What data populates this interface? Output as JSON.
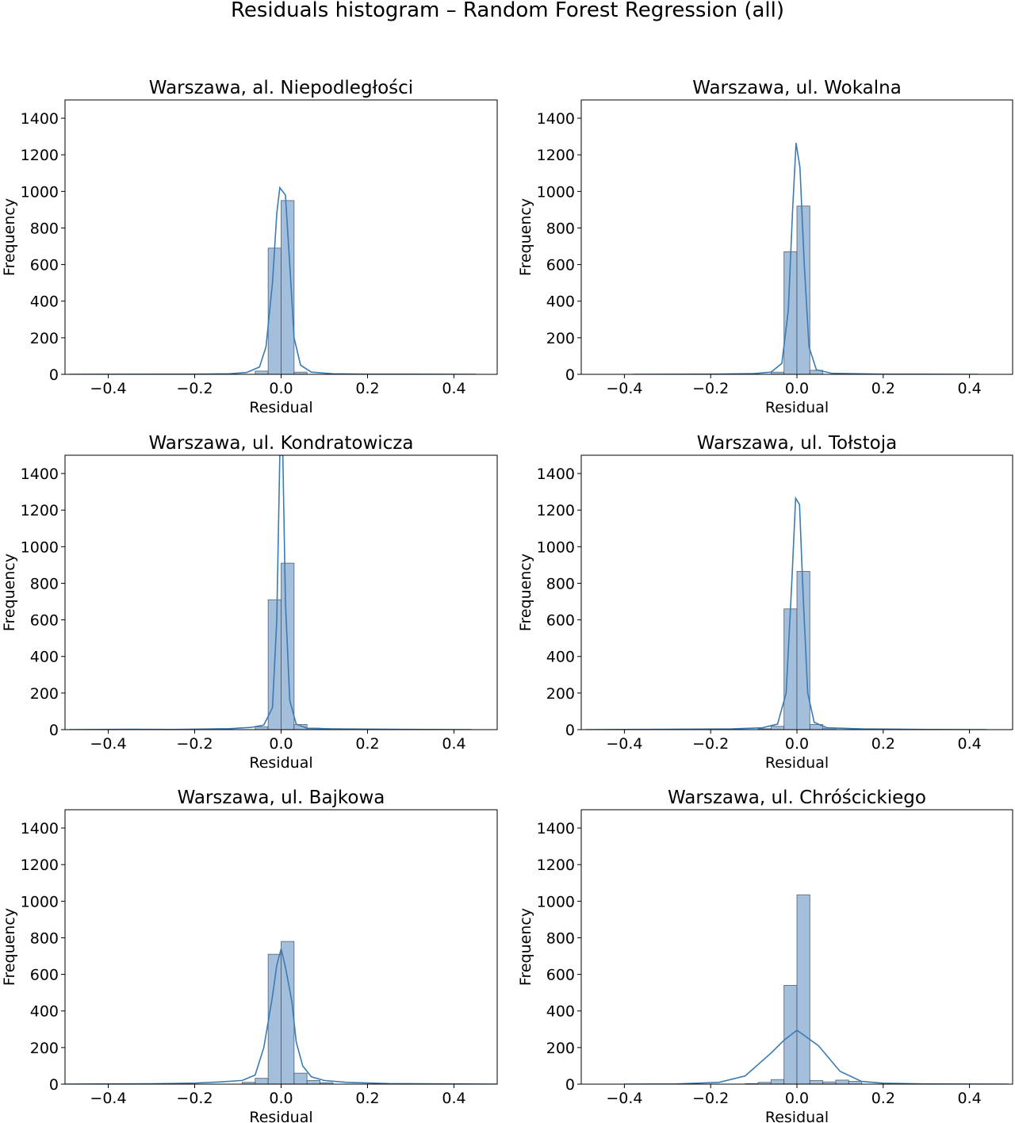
{
  "figure": {
    "title": "Residuals histogram – Random Forest Regression (all)"
  },
  "chart_data": [
    {
      "type": "histogram",
      "title": "Warszawa, al. Niepodległości",
      "xlabel": "Residual",
      "ylabel": "Frequency",
      "xlim": [
        -0.5,
        0.5
      ],
      "ylim": [
        0,
        1500
      ],
      "xticks": [
        -0.4,
        -0.2,
        0.0,
        0.2,
        0.4
      ],
      "xtick_labels": [
        "−0.4",
        "−0.2",
        "0.0",
        "0.2",
        "0.4"
      ],
      "yticks": [
        0,
        200,
        400,
        600,
        800,
        1000,
        1200,
        1400
      ],
      "bin_width": 0.03,
      "bins": [
        {
          "x0": -0.06,
          "x1": -0.03,
          "count": 18
        },
        {
          "x0": -0.03,
          "x1": 0.0,
          "count": 690
        },
        {
          "x0": 0.0,
          "x1": 0.03,
          "count": 950
        },
        {
          "x0": 0.03,
          "x1": 0.06,
          "count": 12
        }
      ],
      "kde": [
        {
          "x": -0.49,
          "y": 0
        },
        {
          "x": -0.2,
          "y": 1
        },
        {
          "x": -0.12,
          "y": 3
        },
        {
          "x": -0.08,
          "y": 10
        },
        {
          "x": -0.05,
          "y": 40
        },
        {
          "x": -0.035,
          "y": 150
        },
        {
          "x": -0.02,
          "y": 500
        },
        {
          "x": -0.01,
          "y": 880
        },
        {
          "x": -0.003,
          "y": 1020
        },
        {
          "x": 0.01,
          "y": 980
        },
        {
          "x": 0.02,
          "y": 600
        },
        {
          "x": 0.03,
          "y": 200
        },
        {
          "x": 0.045,
          "y": 50
        },
        {
          "x": 0.07,
          "y": 12
        },
        {
          "x": 0.12,
          "y": 3
        },
        {
          "x": 0.2,
          "y": 1
        },
        {
          "x": 0.45,
          "y": 0
        }
      ]
    },
    {
      "type": "histogram",
      "title": "Warszawa, ul. Wokalna",
      "xlabel": "Residual",
      "ylabel": "Frequency",
      "xlim": [
        -0.5,
        0.5
      ],
      "ylim": [
        0,
        1500
      ],
      "xticks": [
        -0.4,
        -0.2,
        0.0,
        0.2,
        0.4
      ],
      "xtick_labels": [
        "−0.4",
        "−0.2",
        "0.0",
        "0.2",
        "0.4"
      ],
      "yticks": [
        0,
        200,
        400,
        600,
        800,
        1000,
        1200,
        1400
      ],
      "bin_width": 0.03,
      "bins": [
        {
          "x0": -0.06,
          "x1": -0.03,
          "count": 12
        },
        {
          "x0": -0.03,
          "x1": 0.0,
          "count": 670
        },
        {
          "x0": 0.0,
          "x1": 0.03,
          "count": 920
        },
        {
          "x0": 0.03,
          "x1": 0.06,
          "count": 22
        }
      ],
      "kde": [
        {
          "x": -0.38,
          "y": 0
        },
        {
          "x": -0.2,
          "y": 1
        },
        {
          "x": -0.1,
          "y": 4
        },
        {
          "x": -0.06,
          "y": 12
        },
        {
          "x": -0.035,
          "y": 60
        },
        {
          "x": -0.02,
          "y": 350
        },
        {
          "x": -0.01,
          "y": 900
        },
        {
          "x": -0.002,
          "y": 1265
        },
        {
          "x": 0.007,
          "y": 1130
        },
        {
          "x": 0.017,
          "y": 600
        },
        {
          "x": 0.028,
          "y": 150
        },
        {
          "x": 0.045,
          "y": 25
        },
        {
          "x": 0.08,
          "y": 6
        },
        {
          "x": 0.2,
          "y": 1
        },
        {
          "x": 0.42,
          "y": 0
        }
      ]
    },
    {
      "type": "histogram",
      "title": "Warszawa, ul. Kondratowicza",
      "xlabel": "Residual",
      "ylabel": "Frequency",
      "xlim": [
        -0.5,
        0.5
      ],
      "ylim": [
        0,
        1500
      ],
      "xticks": [
        -0.4,
        -0.2,
        0.0,
        0.2,
        0.4
      ],
      "xtick_labels": [
        "−0.4",
        "−0.2",
        "0.0",
        "0.2",
        "0.4"
      ],
      "yticks": [
        0,
        200,
        400,
        600,
        800,
        1000,
        1200,
        1400
      ],
      "bin_width": 0.03,
      "bins": [
        {
          "x0": -0.06,
          "x1": -0.03,
          "count": 15
        },
        {
          "x0": -0.03,
          "x1": 0.0,
          "count": 710
        },
        {
          "x0": 0.0,
          "x1": 0.03,
          "count": 910
        },
        {
          "x0": 0.03,
          "x1": 0.06,
          "count": 28
        },
        {
          "x0": 0.06,
          "x1": 0.09,
          "count": 8
        }
      ],
      "kde": [
        {
          "x": -0.49,
          "y": 0
        },
        {
          "x": -0.35,
          "y": 2
        },
        {
          "x": -0.25,
          "y": 1
        },
        {
          "x": -0.12,
          "y": 5
        },
        {
          "x": -0.07,
          "y": 12
        },
        {
          "x": -0.04,
          "y": 25
        },
        {
          "x": -0.02,
          "y": 120
        },
        {
          "x": -0.01,
          "y": 600
        },
        {
          "x": -0.003,
          "y": 1500
        },
        {
          "x": 0.004,
          "y": 1500
        },
        {
          "x": 0.01,
          "y": 700
        },
        {
          "x": 0.02,
          "y": 160
        },
        {
          "x": 0.035,
          "y": 30
        },
        {
          "x": 0.06,
          "y": 8
        },
        {
          "x": 0.12,
          "y": 4
        },
        {
          "x": 0.25,
          "y": 2
        },
        {
          "x": 0.44,
          "y": 0
        }
      ]
    },
    {
      "type": "histogram",
      "title": "Warszawa, ul. Tołstoja",
      "xlabel": "Residual",
      "ylabel": "Frequency",
      "xlim": [
        -0.5,
        0.5
      ],
      "ylim": [
        0,
        1500
      ],
      "xticks": [
        -0.4,
        -0.2,
        0.0,
        0.2,
        0.4
      ],
      "xtick_labels": [
        "−0.4",
        "−0.2",
        "0.0",
        "0.2",
        "0.4"
      ],
      "yticks": [
        0,
        200,
        400,
        600,
        800,
        1000,
        1200,
        1400
      ],
      "bin_width": 0.03,
      "bins": [
        {
          "x0": -0.09,
          "x1": -0.06,
          "count": 5
        },
        {
          "x0": -0.06,
          "x1": -0.03,
          "count": 18
        },
        {
          "x0": -0.03,
          "x1": 0.0,
          "count": 660
        },
        {
          "x0": 0.0,
          "x1": 0.03,
          "count": 865
        },
        {
          "x0": 0.03,
          "x1": 0.06,
          "count": 28
        },
        {
          "x0": 0.06,
          "x1": 0.09,
          "count": 8
        }
      ],
      "kde": [
        {
          "x": -0.49,
          "y": 0
        },
        {
          "x": -0.3,
          "y": 2
        },
        {
          "x": -0.15,
          "y": 4
        },
        {
          "x": -0.08,
          "y": 10
        },
        {
          "x": -0.045,
          "y": 30
        },
        {
          "x": -0.025,
          "y": 200
        },
        {
          "x": -0.012,
          "y": 800
        },
        {
          "x": -0.003,
          "y": 1265
        },
        {
          "x": 0.006,
          "y": 1230
        },
        {
          "x": 0.015,
          "y": 700
        },
        {
          "x": 0.025,
          "y": 200
        },
        {
          "x": 0.04,
          "y": 40
        },
        {
          "x": 0.07,
          "y": 10
        },
        {
          "x": 0.15,
          "y": 4
        },
        {
          "x": 0.3,
          "y": 1
        },
        {
          "x": 0.44,
          "y": 0
        }
      ]
    },
    {
      "type": "histogram",
      "title": "Warszawa, ul. Bajkowa",
      "xlabel": "Residual",
      "ylabel": "Frequency",
      "xlim": [
        -0.5,
        0.5
      ],
      "ylim": [
        0,
        1500
      ],
      "xticks": [
        -0.4,
        -0.2,
        0.0,
        0.2,
        0.4
      ],
      "xtick_labels": [
        "−0.4",
        "−0.2",
        "0.0",
        "0.2",
        "0.4"
      ],
      "yticks": [
        0,
        200,
        400,
        600,
        800,
        1000,
        1200,
        1400
      ],
      "bin_width": 0.03,
      "bins": [
        {
          "x0": -0.09,
          "x1": -0.06,
          "count": 10
        },
        {
          "x0": -0.06,
          "x1": -0.03,
          "count": 32
        },
        {
          "x0": -0.03,
          "x1": 0.0,
          "count": 710
        },
        {
          "x0": 0.0,
          "x1": 0.03,
          "count": 780
        },
        {
          "x0": 0.03,
          "x1": 0.06,
          "count": 60
        },
        {
          "x0": 0.06,
          "x1": 0.09,
          "count": 20
        },
        {
          "x0": 0.09,
          "x1": 0.12,
          "count": 8
        }
      ],
      "kde": [
        {
          "x": -0.5,
          "y": 0
        },
        {
          "x": -0.3,
          "y": 2
        },
        {
          "x": -0.2,
          "y": 6
        },
        {
          "x": -0.14,
          "y": 12
        },
        {
          "x": -0.09,
          "y": 20
        },
        {
          "x": -0.06,
          "y": 50
        },
        {
          "x": -0.04,
          "y": 200
        },
        {
          "x": -0.02,
          "y": 480
        },
        {
          "x": -0.01,
          "y": 650
        },
        {
          "x": 0.0,
          "y": 740
        },
        {
          "x": 0.01,
          "y": 640
        },
        {
          "x": 0.025,
          "y": 450
        },
        {
          "x": 0.035,
          "y": 230
        },
        {
          "x": 0.05,
          "y": 100
        },
        {
          "x": 0.07,
          "y": 40
        },
        {
          "x": 0.1,
          "y": 20
        },
        {
          "x": 0.15,
          "y": 10
        },
        {
          "x": 0.25,
          "y": 3
        },
        {
          "x": 0.5,
          "y": 0
        }
      ]
    },
    {
      "type": "histogram",
      "title": "Warszawa, ul. Chróścickiego",
      "xlabel": "Residual",
      "ylabel": "Frequency",
      "xlim": [
        -0.5,
        0.5
      ],
      "ylim": [
        0,
        1500
      ],
      "xticks": [
        -0.4,
        -0.2,
        0.0,
        0.2,
        0.4
      ],
      "xtick_labels": [
        "−0.4",
        "−0.2",
        "0.0",
        "0.2",
        "0.4"
      ],
      "yticks": [
        0,
        200,
        400,
        600,
        800,
        1000,
        1200,
        1400
      ],
      "bin_width": 0.03,
      "bins": [
        {
          "x0": -0.12,
          "x1": -0.09,
          "count": 3
        },
        {
          "x0": -0.09,
          "x1": -0.06,
          "count": 10
        },
        {
          "x0": -0.06,
          "x1": -0.03,
          "count": 25
        },
        {
          "x0": -0.03,
          "x1": 0.0,
          "count": 540
        },
        {
          "x0": 0.0,
          "x1": 0.03,
          "count": 1035
        },
        {
          "x0": 0.03,
          "x1": 0.06,
          "count": 20
        },
        {
          "x0": 0.06,
          "x1": 0.09,
          "count": 12
        },
        {
          "x0": 0.09,
          "x1": 0.12,
          "count": 22
        },
        {
          "x0": 0.12,
          "x1": 0.15,
          "count": 15
        }
      ],
      "kde": [
        {
          "x": -0.4,
          "y": 0
        },
        {
          "x": -0.28,
          "y": 1
        },
        {
          "x": -0.18,
          "y": 10
        },
        {
          "x": -0.12,
          "y": 45
        },
        {
          "x": -0.06,
          "y": 170
        },
        {
          "x": -0.03,
          "y": 240
        },
        {
          "x": 0.0,
          "y": 295
        },
        {
          "x": 0.05,
          "y": 210
        },
        {
          "x": 0.1,
          "y": 70
        },
        {
          "x": 0.15,
          "y": 15
        },
        {
          "x": 0.2,
          "y": 5
        },
        {
          "x": 0.3,
          "y": 1
        },
        {
          "x": 0.49,
          "y": 0
        }
      ]
    }
  ]
}
